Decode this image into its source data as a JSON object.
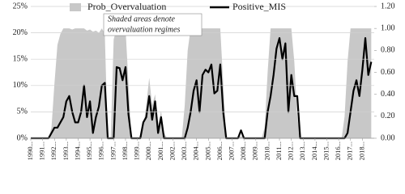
{
  "chart_data": {
    "type": "line",
    "annotation": [
      "Shaded areas denote",
      "overvaluation regimes"
    ],
    "x": [
      1990,
      1990.25,
      1990.5,
      1990.75,
      1991,
      1991.25,
      1991.5,
      1991.75,
      1992,
      1992.25,
      1992.5,
      1992.75,
      1993,
      1993.25,
      1993.5,
      1993.75,
      1994,
      1994.25,
      1994.5,
      1994.75,
      1995,
      1995.25,
      1995.5,
      1995.75,
      1996,
      1996.25,
      1996.5,
      1996.75,
      1997,
      1997.25,
      1997.5,
      1997.75,
      1998,
      1998.25,
      1998.5,
      1998.75,
      1999,
      1999.25,
      1999.5,
      1999.75,
      2000,
      2000.25,
      2000.5,
      2000.75,
      2001,
      2001.25,
      2001.5,
      2001.75,
      2002,
      2002.25,
      2002.5,
      2002.75,
      2003,
      2003.25,
      2003.5,
      2003.75,
      2004,
      2004.25,
      2004.5,
      2004.75,
      2005,
      2005.25,
      2005.5,
      2005.75,
      2006,
      2006.25,
      2006.5,
      2006.75,
      2007,
      2007.25,
      2007.5,
      2007.75,
      2008,
      2008.25,
      2008.5,
      2008.75,
      2009,
      2009.25,
      2009.5,
      2009.75,
      2010,
      2010.25,
      2010.5,
      2010.75,
      2011,
      2011.25,
      2011.5,
      2011.75,
      2012,
      2012.25,
      2012.5,
      2012.75,
      2013,
      2013.25,
      2013.5,
      2013.75,
      2014,
      2014.25,
      2014.5,
      2014.75,
      2015,
      2015.25,
      2015.5,
      2015.75,
      2016,
      2016.25,
      2016.5,
      2016.75,
      2017,
      2017.25,
      2017.5,
      2017.75,
      2018,
      2018.25,
      2018.5,
      2018.75
    ],
    "series": [
      {
        "name": "Prob_Overvaluation",
        "color": "#c8c8c8",
        "axis": "y2",
        "kind": "area",
        "values": [
          0,
          0,
          0,
          0,
          0,
          0,
          0,
          0.1,
          0.5,
          0.85,
          0.95,
          1,
          1,
          1,
          0.99,
          1,
          1,
          1,
          1,
          0.98,
          0.99,
          0.97,
          0.98,
          0.96,
          1,
          0.95,
          0,
          0,
          0.9,
          1,
          1,
          1,
          1,
          0.5,
          0,
          0,
          0,
          0,
          0.1,
          0.3,
          0.55,
          0.3,
          0.4,
          0.1,
          0.25,
          0.05,
          0,
          0,
          0,
          0,
          0,
          0,
          0.3,
          0.8,
          1,
          1,
          1,
          1,
          1,
          1,
          1,
          1,
          1,
          1,
          1,
          0.5,
          0,
          0,
          0,
          0,
          0,
          0.02,
          0,
          0,
          0,
          0,
          0,
          0,
          0,
          0.1,
          0.6,
          1,
          1,
          1,
          1,
          1,
          1,
          1,
          1,
          0.7,
          0.2,
          0,
          0,
          0,
          0,
          0,
          0,
          0,
          0,
          0,
          0,
          0,
          0,
          0,
          0,
          0,
          0.2,
          0.7,
          1,
          1,
          1,
          1,
          1,
          1,
          1,
          1
        ]
      },
      {
        "name": "Positive_MIS",
        "color": "#000000",
        "kind": "line",
        "values": [
          0,
          0,
          0,
          0,
          0,
          0,
          0,
          1,
          2,
          2,
          3,
          4,
          7,
          8,
          5,
          3,
          3,
          5,
          10,
          4,
          7,
          1,
          4,
          6,
          10,
          10.5,
          0,
          0,
          0,
          13.5,
          13.3,
          11,
          13.5,
          4.5,
          0,
          0,
          0,
          0,
          3,
          4,
          8,
          3.5,
          7,
          1,
          4,
          0,
          0,
          0,
          0,
          0,
          0,
          0,
          0,
          2,
          5,
          9,
          11,
          5,
          12,
          13,
          12.5,
          14,
          8.5,
          9,
          14,
          5,
          0,
          0,
          0,
          0,
          0,
          1.5,
          0,
          0,
          0,
          0,
          0,
          0,
          0,
          0,
          5,
          8,
          12,
          17,
          19,
          15,
          18,
          5,
          12,
          8,
          8,
          0,
          0,
          0,
          0,
          0,
          0,
          0,
          0,
          0,
          0,
          0,
          0,
          0,
          0,
          0,
          0,
          1,
          5,
          9,
          11,
          8,
          13,
          19,
          12,
          14.5
        ]
      }
    ],
    "xlim": [
      1990,
      2019
    ],
    "xticks": [
      {
        "value": 1990,
        "label": "1990..."
      },
      {
        "value": 1991,
        "label": "1991..."
      },
      {
        "value": 1992,
        "label": "1992..."
      },
      {
        "value": 1993,
        "label": "1993..."
      },
      {
        "value": 1994,
        "label": "1994..."
      },
      {
        "value": 1995,
        "label": "1995..."
      },
      {
        "value": 1996,
        "label": "1996..."
      },
      {
        "value": 1997,
        "label": "1997..."
      },
      {
        "value": 1998,
        "label": "1998..."
      },
      {
        "value": 1999,
        "label": "1999..."
      },
      {
        "value": 2000,
        "label": "2000..."
      },
      {
        "value": 2001,
        "label": "2001..."
      },
      {
        "value": 2002,
        "label": "2002..."
      },
      {
        "value": 2003,
        "label": "2003..."
      },
      {
        "value": 2004,
        "label": "2004..."
      },
      {
        "value": 2005,
        "label": "2005..."
      },
      {
        "value": 2006,
        "label": "2006..."
      },
      {
        "value": 2007,
        "label": "2007..."
      },
      {
        "value": 2008,
        "label": "2008..."
      },
      {
        "value": 2009,
        "label": "2009..."
      },
      {
        "value": 2010,
        "label": "2010..."
      },
      {
        "value": 2011,
        "label": "2011..."
      },
      {
        "value": 2012,
        "label": "2012..."
      },
      {
        "value": 2013,
        "label": "2013..."
      },
      {
        "value": 2014,
        "label": "2014..."
      },
      {
        "value": 2015,
        "label": "2015..."
      },
      {
        "value": 2016,
        "label": "2016..."
      },
      {
        "value": 2017,
        "label": "2017..."
      },
      {
        "value": 2018,
        "label": "2018..."
      }
    ],
    "ylim": [
      0,
      25
    ],
    "yticks": [
      {
        "value": 0,
        "label": "0%"
      },
      {
        "value": 5,
        "label": "5%"
      },
      {
        "value": 10,
        "label": "10%"
      },
      {
        "value": 15,
        "label": "15%"
      },
      {
        "value": 20,
        "label": "20%"
      },
      {
        "value": 25,
        "label": "25%"
      }
    ],
    "y2lim": [
      0,
      1.2
    ],
    "y2ticks": [
      {
        "value": 0,
        "label": "0.00"
      },
      {
        "value": 0.2,
        "label": "0.20"
      },
      {
        "value": 0.4,
        "label": "0.40"
      },
      {
        "value": 0.6,
        "label": "0.60"
      },
      {
        "value": 0.8,
        "label": "0.80"
      },
      {
        "value": 1,
        "label": "1.00"
      },
      {
        "value": 1.2,
        "label": "1.20"
      }
    ],
    "grid": true
  }
}
